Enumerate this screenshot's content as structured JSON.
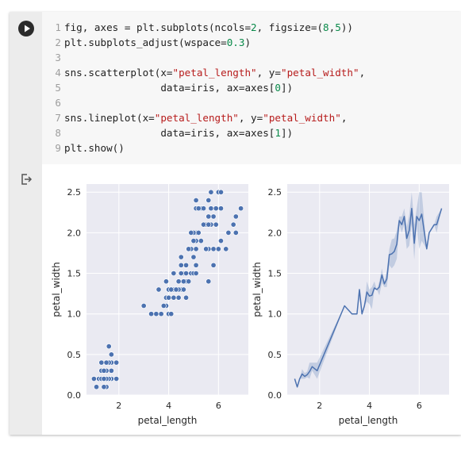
{
  "notebook": {
    "run_button_icon": "play-icon",
    "output_icon": "output-redirect-icon",
    "code_lines": [
      {
        "n": "1",
        "tokens": [
          {
            "t": "fig, axes = plt.subplots(ncols=",
            "c": ""
          },
          {
            "t": "2",
            "c": "num"
          },
          {
            "t": ", figsize=(",
            "c": ""
          },
          {
            "t": "8",
            "c": "num"
          },
          {
            "t": ",",
            "c": ""
          },
          {
            "t": "5",
            "c": "num"
          },
          {
            "t": "))",
            "c": ""
          }
        ]
      },
      {
        "n": "2",
        "tokens": [
          {
            "t": "plt.subplots_adjust(wspace=",
            "c": ""
          },
          {
            "t": "0.3",
            "c": "num"
          },
          {
            "t": ")",
            "c": ""
          }
        ]
      },
      {
        "n": "3",
        "tokens": []
      },
      {
        "n": "4",
        "tokens": [
          {
            "t": "sns.scatterplot(x=",
            "c": ""
          },
          {
            "t": "\"petal_length\"",
            "c": "str"
          },
          {
            "t": ", y=",
            "c": ""
          },
          {
            "t": "\"petal_width\"",
            "c": "str"
          },
          {
            "t": ",",
            "c": ""
          }
        ]
      },
      {
        "n": "5",
        "tokens": [
          {
            "t": "                data=iris, ax=axes[",
            "c": ""
          },
          {
            "t": "0",
            "c": "num"
          },
          {
            "t": "])",
            "c": ""
          }
        ]
      },
      {
        "n": "6",
        "tokens": []
      },
      {
        "n": "7",
        "tokens": [
          {
            "t": "sns.lineplot(x=",
            "c": ""
          },
          {
            "t": "\"petal_length\"",
            "c": "str"
          },
          {
            "t": ", y=",
            "c": ""
          },
          {
            "t": "\"petal_width\"",
            "c": "str"
          },
          {
            "t": ",",
            "c": ""
          }
        ]
      },
      {
        "n": "8",
        "tokens": [
          {
            "t": "                data=iris, ax=axes[",
            "c": ""
          },
          {
            "t": "1",
            "c": "num"
          },
          {
            "t": "])",
            "c": ""
          }
        ]
      },
      {
        "n": "9",
        "tokens": [
          {
            "t": "plt.show()",
            "c": ""
          }
        ]
      }
    ]
  },
  "colors": {
    "plot_bg": "#eaeaf2",
    "series": "#4c72b0",
    "code_string": "#b71c1c",
    "code_number": "#0a8a4a"
  },
  "chart_data": [
    {
      "type": "scatter",
      "xlabel": "petal_length",
      "ylabel": "petal_width",
      "xticks": [
        "2",
        "4",
        "6"
      ],
      "yticks": [
        "0.0",
        "0.5",
        "1.0",
        "1.5",
        "2.0",
        "2.5"
      ],
      "xlim": [
        0.7,
        7.2
      ],
      "ylim": [
        0,
        2.6
      ],
      "grid": true,
      "points": [
        [
          1.4,
          0.2
        ],
        [
          1.4,
          0.2
        ],
        [
          1.3,
          0.2
        ],
        [
          1.5,
          0.2
        ],
        [
          1.4,
          0.2
        ],
        [
          1.7,
          0.4
        ],
        [
          1.4,
          0.3
        ],
        [
          1.5,
          0.2
        ],
        [
          1.4,
          0.2
        ],
        [
          1.5,
          0.1
        ],
        [
          1.5,
          0.2
        ],
        [
          1.6,
          0.2
        ],
        [
          1.4,
          0.1
        ],
        [
          1.1,
          0.1
        ],
        [
          1.2,
          0.2
        ],
        [
          1.5,
          0.4
        ],
        [
          1.3,
          0.4
        ],
        [
          1.4,
          0.3
        ],
        [
          1.7,
          0.3
        ],
        [
          1.5,
          0.3
        ],
        [
          1.7,
          0.2
        ],
        [
          1.5,
          0.4
        ],
        [
          1.0,
          0.2
        ],
        [
          1.7,
          0.5
        ],
        [
          1.9,
          0.2
        ],
        [
          1.6,
          0.2
        ],
        [
          1.6,
          0.4
        ],
        [
          1.5,
          0.2
        ],
        [
          1.4,
          0.2
        ],
        [
          1.6,
          0.2
        ],
        [
          1.6,
          0.2
        ],
        [
          1.5,
          0.4
        ],
        [
          1.5,
          0.1
        ],
        [
          1.4,
          0.2
        ],
        [
          1.5,
          0.2
        ],
        [
          1.2,
          0.2
        ],
        [
          1.3,
          0.2
        ],
        [
          1.4,
          0.1
        ],
        [
          1.3,
          0.2
        ],
        [
          1.5,
          0.2
        ],
        [
          1.3,
          0.3
        ],
        [
          1.3,
          0.3
        ],
        [
          1.3,
          0.2
        ],
        [
          1.6,
          0.6
        ],
        [
          1.9,
          0.4
        ],
        [
          1.4,
          0.3
        ],
        [
          1.6,
          0.2
        ],
        [
          1.4,
          0.2
        ],
        [
          1.5,
          0.2
        ],
        [
          1.4,
          0.2
        ],
        [
          4.7,
          1.4
        ],
        [
          4.5,
          1.5
        ],
        [
          4.9,
          1.5
        ],
        [
          4.0,
          1.3
        ],
        [
          4.6,
          1.5
        ],
        [
          4.5,
          1.3
        ],
        [
          4.7,
          1.6
        ],
        [
          3.3,
          1.0
        ],
        [
          4.6,
          1.3
        ],
        [
          3.9,
          1.4
        ],
        [
          3.5,
          1.0
        ],
        [
          4.2,
          1.5
        ],
        [
          4.0,
          1.0
        ],
        [
          4.7,
          1.4
        ],
        [
          3.6,
          1.3
        ],
        [
          4.4,
          1.4
        ],
        [
          4.5,
          1.5
        ],
        [
          4.1,
          1.0
        ],
        [
          4.5,
          1.5
        ],
        [
          3.9,
          1.1
        ],
        [
          4.8,
          1.8
        ],
        [
          4.0,
          1.3
        ],
        [
          4.9,
          1.5
        ],
        [
          4.7,
          1.2
        ],
        [
          4.3,
          1.3
        ],
        [
          4.4,
          1.4
        ],
        [
          4.8,
          1.4
        ],
        [
          5.0,
          1.7
        ],
        [
          4.5,
          1.5
        ],
        [
          3.5,
          1.0
        ],
        [
          3.8,
          1.1
        ],
        [
          3.7,
          1.0
        ],
        [
          3.9,
          1.2
        ],
        [
          5.1,
          1.6
        ],
        [
          4.5,
          1.5
        ],
        [
          4.5,
          1.6
        ],
        [
          4.7,
          1.5
        ],
        [
          4.4,
          1.3
        ],
        [
          4.1,
          1.3
        ],
        [
          4.0,
          1.3
        ],
        [
          4.4,
          1.2
        ],
        [
          4.6,
          1.4
        ],
        [
          4.0,
          1.2
        ],
        [
          3.3,
          1.0
        ],
        [
          4.2,
          1.3
        ],
        [
          4.2,
          1.2
        ],
        [
          4.2,
          1.3
        ],
        [
          4.3,
          1.3
        ],
        [
          3.0,
          1.1
        ],
        [
          4.1,
          1.3
        ],
        [
          6.0,
          2.5
        ],
        [
          5.1,
          1.9
        ],
        [
          5.9,
          2.1
        ],
        [
          5.6,
          1.8
        ],
        [
          5.8,
          2.2
        ],
        [
          6.6,
          2.1
        ],
        [
          4.5,
          1.7
        ],
        [
          6.3,
          1.8
        ],
        [
          5.8,
          1.8
        ],
        [
          6.1,
          2.5
        ],
        [
          5.1,
          2.0
        ],
        [
          5.3,
          1.9
        ],
        [
          5.5,
          2.1
        ],
        [
          5.0,
          2.0
        ],
        [
          5.1,
          2.4
        ],
        [
          5.3,
          2.3
        ],
        [
          5.5,
          1.8
        ],
        [
          6.7,
          2.2
        ],
        [
          6.9,
          2.3
        ],
        [
          5.0,
          1.5
        ],
        [
          5.7,
          2.3
        ],
        [
          4.9,
          2.0
        ],
        [
          6.7,
          2.0
        ],
        [
          4.9,
          1.8
        ],
        [
          5.7,
          2.1
        ],
        [
          6.0,
          1.8
        ],
        [
          4.8,
          1.8
        ],
        [
          4.9,
          1.8
        ],
        [
          5.6,
          2.1
        ],
        [
          5.8,
          1.6
        ],
        [
          6.1,
          1.9
        ],
        [
          6.4,
          2.0
        ],
        [
          5.6,
          2.2
        ],
        [
          5.1,
          1.5
        ],
        [
          5.6,
          1.4
        ],
        [
          6.1,
          2.3
        ],
        [
          5.6,
          2.4
        ],
        [
          5.5,
          1.8
        ],
        [
          4.8,
          1.8
        ],
        [
          5.4,
          2.1
        ],
        [
          5.6,
          2.4
        ],
        [
          5.1,
          2.3
        ],
        [
          5.1,
          1.9
        ],
        [
          5.9,
          2.3
        ],
        [
          5.7,
          2.5
        ],
        [
          5.2,
          2.3
        ],
        [
          5.0,
          1.9
        ],
        [
          5.2,
          2.0
        ],
        [
          5.4,
          2.3
        ],
        [
          5.1,
          1.8
        ]
      ]
    },
    {
      "type": "line",
      "xlabel": "petal_length",
      "ylabel": "petal_width",
      "xticks": [
        "2",
        "4",
        "6"
      ],
      "yticks": [
        "0.0",
        "0.5",
        "1.0",
        "1.5",
        "2.0",
        "2.5"
      ],
      "xlim": [
        0.7,
        7.2
      ],
      "ylim": [
        0,
        2.6
      ],
      "grid": true,
      "x": [
        1.0,
        1.1,
        1.2,
        1.3,
        1.4,
        1.5,
        1.6,
        1.7,
        1.9,
        3.0,
        3.3,
        3.5,
        3.6,
        3.7,
        3.8,
        3.9,
        4.0,
        4.1,
        4.2,
        4.3,
        4.4,
        4.5,
        4.6,
        4.7,
        4.8,
        4.9,
        5.0,
        5.1,
        5.2,
        5.3,
        5.4,
        5.5,
        5.6,
        5.7,
        5.8,
        5.9,
        6.0,
        6.1,
        6.3,
        6.4,
        6.6,
        6.7,
        6.9
      ],
      "y": [
        0.2,
        0.1,
        0.2,
        0.26,
        0.23,
        0.25,
        0.29,
        0.35,
        0.3,
        1.1,
        1.0,
        1.0,
        1.3,
        1.0,
        1.1,
        1.27,
        1.22,
        1.23,
        1.32,
        1.3,
        1.33,
        1.48,
        1.37,
        1.43,
        1.73,
        1.74,
        1.77,
        1.86,
        2.15,
        2.1,
        2.2,
        1.93,
        2.03,
        2.3,
        1.87,
        2.2,
        2.15,
        2.23,
        1.8,
        2.0,
        2.1,
        2.1,
        2.3
      ],
      "ci_low": [
        0.2,
        0.1,
        0.2,
        0.2,
        0.2,
        0.22,
        0.2,
        0.3,
        0.2,
        1.1,
        1.0,
        1.0,
        1.3,
        1.0,
        1.1,
        1.15,
        1.12,
        1.06,
        1.3,
        1.3,
        1.23,
        1.38,
        1.33,
        1.33,
        1.6,
        1.56,
        1.6,
        1.68,
        2.1,
        2.0,
        2.1,
        1.8,
        1.84,
        2.1,
        1.67,
        2.1,
        1.8,
        1.9,
        1.8,
        2.0,
        2.1,
        2.0,
        2.3
      ],
      "ci_high": [
        0.2,
        0.1,
        0.2,
        0.32,
        0.27,
        0.29,
        0.4,
        0.4,
        0.4,
        1.1,
        1.0,
        1.0,
        1.3,
        1.0,
        1.1,
        1.4,
        1.3,
        1.33,
        1.4,
        1.3,
        1.4,
        1.56,
        1.4,
        1.53,
        1.8,
        1.92,
        1.93,
        2.03,
        2.2,
        2.2,
        2.3,
        2.07,
        2.22,
        2.5,
        2.1,
        2.3,
        2.5,
        2.5,
        1.8,
        2.0,
        2.1,
        2.2,
        2.3
      ]
    }
  ]
}
